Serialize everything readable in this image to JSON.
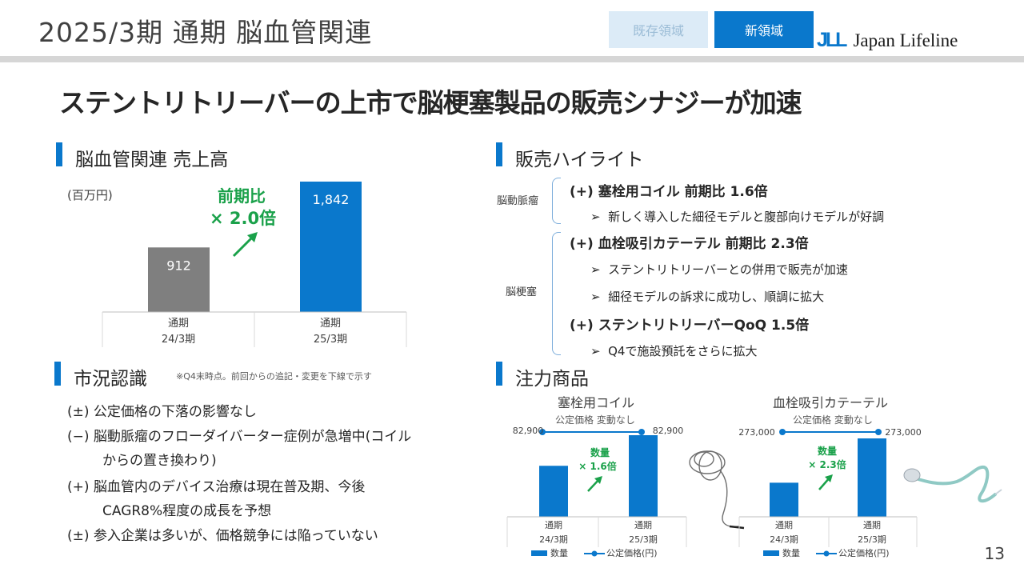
{
  "header": {
    "title": "2025/3期 通期 脳血管関連",
    "tabs": [
      "既存領域",
      "新領域"
    ],
    "logo_mark": "JLL",
    "logo_text": "Japan Lifeline"
  },
  "headline": "ステントリトリーバーの上市で脳梗塞製品の販売シナジーが加速",
  "sales": {
    "section_title": "脳血管関連 売上高",
    "unit": "(百万円)",
    "growth_label": "前期比",
    "growth_value": "× 2.0倍",
    "colors": {
      "prev": "#7f7f7f",
      "curr": "#0a78cc",
      "growth": "#1aa14a"
    }
  },
  "highlights": {
    "section_title": "販売ハイライト",
    "groups": [
      {
        "category": "脳動脈瘤",
        "items": [
          {
            "heading": "(+) 塞栓用コイル 前期比 1.6倍",
            "bullets": [
              "新しく導入した細径モデルと腹部向けモデルが好調"
            ]
          }
        ]
      },
      {
        "category": "脳梗塞",
        "items": [
          {
            "heading": "(+) 血栓吸引カテーテル 前期比 2.3倍",
            "bullets": [
              "ステントリトリーバーとの併用で販売が加速",
              "細径モデルの訴求に成功し、順調に拡大"
            ]
          },
          {
            "heading": "(+) ステントリトリーバーQoQ 1.5倍",
            "bullets": [
              "Q4で施設預託をさらに拡大"
            ]
          }
        ]
      }
    ],
    "bullet_glyph": "➢"
  },
  "market": {
    "section_title": "市況認識",
    "note": "※Q4末時点。前回からの追記・変更を下線で示す",
    "rows": [
      {
        "sign": "(±)",
        "lines": [
          "公定価格の下落の影響なし"
        ]
      },
      {
        "sign": "(−)",
        "lines": [
          "脳動脈瘤のフローダイバーター症例が急増中(コイル",
          "からの置き換わり)"
        ]
      },
      {
        "sign": "(+)",
        "lines": [
          "脳血管内のデバイス治療は現在普及期、今後",
          "CAGR8%程度の成長を予想"
        ]
      },
      {
        "sign": "(±)",
        "lines": [
          "参入企業は多いが、価格競争には陥っていない"
        ]
      }
    ]
  },
  "focus": {
    "section_title": "注力商品"
  },
  "page_number": "13",
  "chart_data": [
    {
      "type": "bar",
      "title": "脳血管関連 売上高",
      "unit": "(百万円)",
      "categories": [
        [
          "通期",
          "24/3期"
        ],
        [
          "通期",
          "25/3期"
        ]
      ],
      "values": [
        912,
        1842
      ],
      "value_labels": [
        "912",
        "1,842"
      ],
      "annotation": "前期比 × 2.0倍"
    },
    {
      "type": "bar",
      "title": "塞栓用コイル",
      "subtitle": "公定価格 変動なし",
      "categories": [
        [
          "通期",
          "24/3期"
        ],
        [
          "通期",
          "25/3期"
        ]
      ],
      "series": [
        {
          "name": "数量",
          "values": [
            1.0,
            1.6
          ]
        },
        {
          "name": "公定価格(円)",
          "values": [
            82900,
            82900
          ]
        }
      ],
      "price_labels": [
        "82,900",
        "82,900"
      ],
      "annotation": [
        "数量",
        "× 1.6倍"
      ]
    },
    {
      "type": "bar",
      "title": "血栓吸引カテーテル",
      "subtitle": "公定価格 変動なし",
      "categories": [
        [
          "通期",
          "24/3期"
        ],
        [
          "通期",
          "25/3期"
        ]
      ],
      "series": [
        {
          "name": "数量",
          "values": [
            1.0,
            2.3
          ]
        },
        {
          "name": "公定価格(円)",
          "values": [
            273000,
            273000
          ]
        }
      ],
      "price_labels": [
        "273,000",
        "273,000"
      ],
      "annotation": [
        "数量",
        "× 2.3倍"
      ]
    }
  ]
}
